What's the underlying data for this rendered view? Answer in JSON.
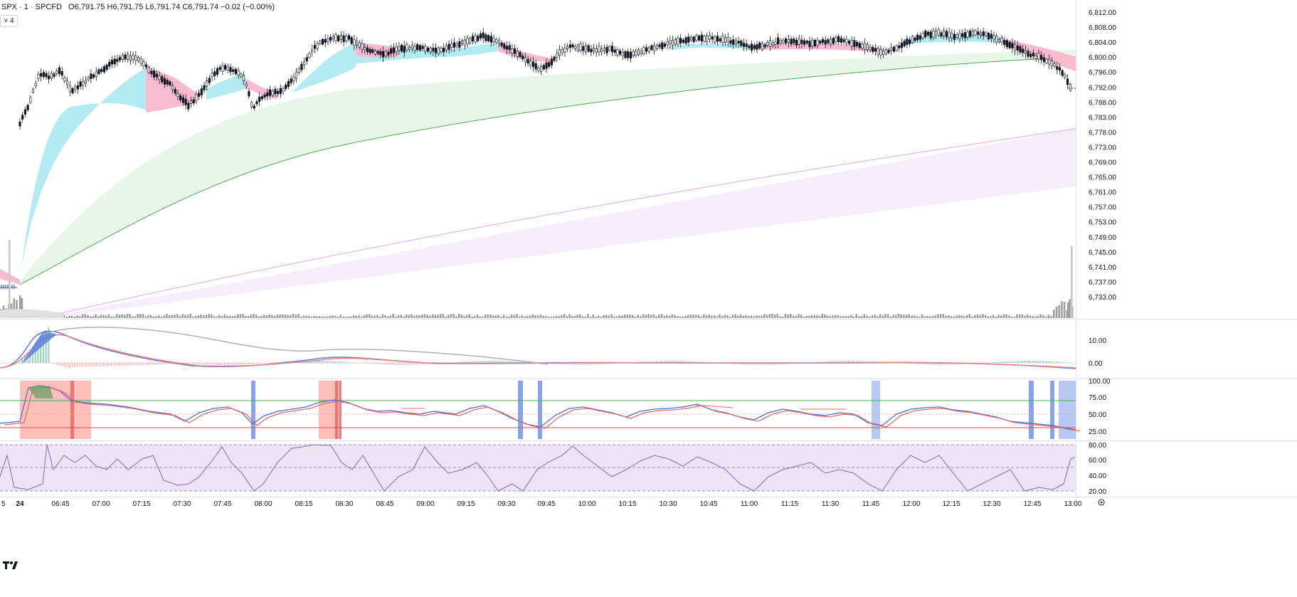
{
  "header": {
    "symbol": "SPX · 1 · SPCFD",
    "open_label": "O",
    "open": "6,791.75",
    "high_label": "H",
    "high": "6,791.75",
    "low_label": "L",
    "low": "6,791.74",
    "close_label": "C",
    "close": "6,791.74",
    "change": "−0.02 (−0.00%)",
    "collapse_count": "4"
  },
  "colors": {
    "cyan_fill": "#b2ebf2",
    "pink_fill": "#f8bbd0",
    "green_band": "#e8f5e9",
    "green_line": "#4caf50",
    "magenta_line": "#e1a6e8",
    "lavender_band": "#f7eefb",
    "candle": "#131722",
    "volume": "#9e9e9e",
    "macd_blue": "#5b7fe0",
    "macd_red": "#f08080",
    "hist_pos": "#a5d6c8",
    "hist_neg": "#f8c8cc",
    "stoch_red_band": "#ff8a80",
    "stoch_blue_band": "#6f94e8",
    "rsi_fill": "#ede3f6",
    "rsi_line": "#7e6bc4"
  },
  "price_axis": [
    "6,812.00",
    "6,808.00",
    "6,804.00",
    "6,800.00",
    "6,796.00",
    "6,792.00",
    "6,788.00",
    "6,783.00",
    "6,778.00",
    "6,773.00",
    "6,769.00",
    "6,765.00",
    "6,761.00",
    "6,757.00",
    "6,753.00",
    "6,749.00",
    "6,745.00",
    "6,741.00",
    "6,737.00",
    "6,733.00"
  ],
  "macd_axis": [
    "10.00",
    "0.00"
  ],
  "stoch_axis": [
    "100.00",
    "75.00",
    "50.00",
    "25.00"
  ],
  "rsi_axis": [
    "80.00",
    "60.00",
    "40.00",
    "20.00"
  ],
  "time_axis": [
    "5",
    "24",
    "06:45",
    "07:00",
    "07:15",
    "07:30",
    "07:45",
    "08:00",
    "08:15",
    "08:30",
    "08:45",
    "09:00",
    "09:15",
    "09:30",
    "09:45",
    "10:00",
    "10:15",
    "10:30",
    "10:45",
    "11:00",
    "11:15",
    "11:30",
    "11:45",
    "12:00",
    "12:15",
    "12:30",
    "12:45",
    "13:00"
  ],
  "icons": {
    "settings": "gear-icon",
    "logo": "tradingview-logo"
  }
}
